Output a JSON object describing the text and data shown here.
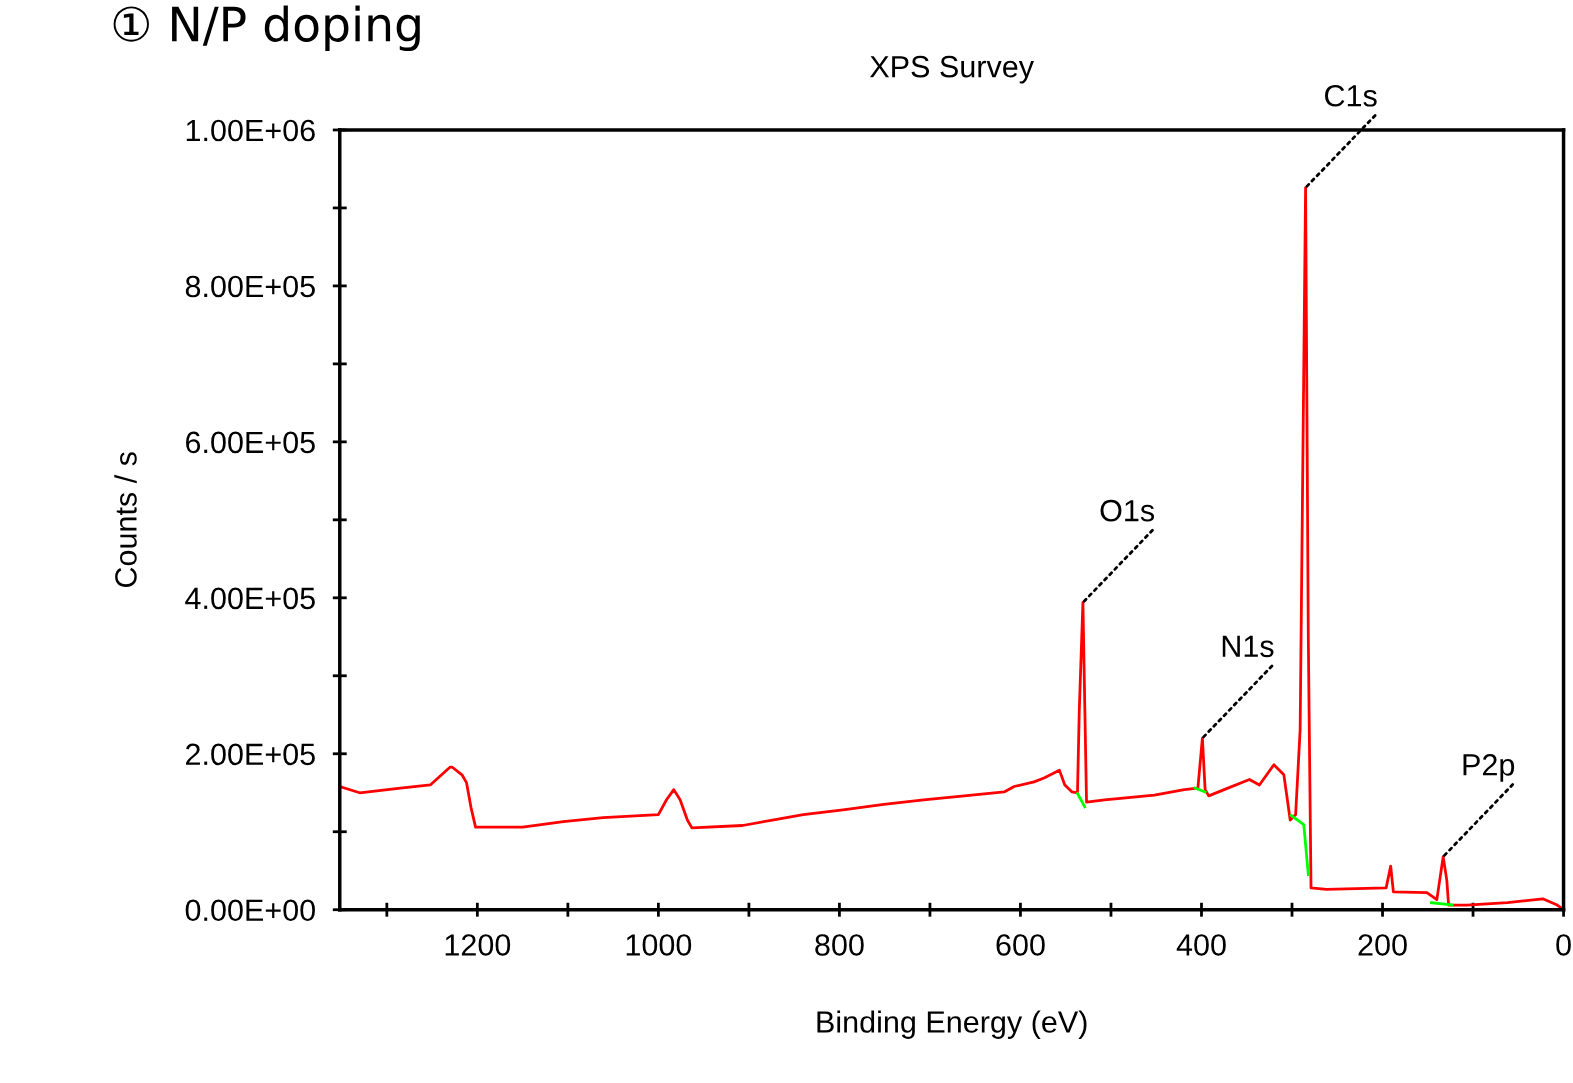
{
  "chart_data": {
    "type": "line",
    "title": "XPS Survey",
    "xlabel": "Binding Energy (eV)",
    "ylabel": "Counts / s",
    "xlim": [
      1352,
      0
    ],
    "ylim": [
      0,
      1000000
    ],
    "xticks": [
      {
        "value": 1300,
        "label": null
      },
      1200,
      {
        "value": 1100,
        "label": null
      },
      1000,
      {
        "value": 900,
        "label": null
      },
      800,
      {
        "value": 700,
        "label": null
      },
      600,
      {
        "value": 500,
        "label": null
      },
      400,
      {
        "value": 300,
        "label": null
      },
      200,
      {
        "value": 100,
        "label": null
      },
      0
    ],
    "yticks": [
      {
        "value": 0,
        "label": "0.00E+00"
      },
      {
        "value": 100000,
        "label": null
      },
      {
        "value": 200000,
        "label": "2.00E+05"
      },
      {
        "value": 300000,
        "label": null
      },
      {
        "value": 400000,
        "label": "4.00E+05"
      },
      {
        "value": 500000,
        "label": null
      },
      {
        "value": 600000,
        "label": "6.00E+05"
      },
      {
        "value": 700000,
        "label": null
      },
      {
        "value": 800000,
        "label": "8.00E+05"
      },
      {
        "value": 900000,
        "label": null
      },
      {
        "value": 1000000,
        "label": "1.00E+06"
      }
    ],
    "grid": false,
    "marker": "none",
    "line_style": "solid",
    "series": [
      {
        "color": "#ff0000",
        "x": [
          1352,
          1330,
          1285,
          1252,
          1230,
          1228,
          1217,
          1212,
          1207,
          1202,
          1150,
          1105,
          1061,
          1000,
          991,
          983,
          976,
          968,
          963,
          907,
          874,
          840,
          796,
          751,
          707,
          662,
          618,
          607,
          585,
          574,
          557,
          551,
          543,
          537,
          535,
          531,
          527,
          507,
          452,
          419,
          404,
          399,
          396,
          392,
          375,
          347,
          336,
          320,
          309,
          302,
          296,
          291,
          285,
          282,
          279,
          262,
          196,
          191,
          188,
          151,
          140,
          133,
          129,
          127,
          107,
          62,
          23,
          7,
          0
        ],
        "values": [
          158000,
          150000,
          156000,
          160000,
          183000,
          183000,
          173000,
          163000,
          131000,
          106000,
          106000,
          113000,
          118000,
          122000,
          141000,
          154000,
          141000,
          115000,
          105000,
          108000,
          115000,
          122000,
          128000,
          135000,
          141000,
          146000,
          151000,
          158000,
          164000,
          169000,
          179000,
          160000,
          151000,
          150000,
          256000,
          394000,
          138000,
          141000,
          147000,
          154000,
          156000,
          220000,
          154000,
          146000,
          154000,
          167000,
          160000,
          186000,
          173000,
          115000,
          122000,
          231000,
          926000,
          349000,
          28000,
          26000,
          28000,
          56000,
          23000,
          22000,
          13000,
          68000,
          38000,
          6000,
          6000,
          9000,
          14000,
          6000,
          0
        ]
      },
      {
        "color": "#00ff00",
        "x": [
          537,
          529,
          null,
          407,
          396,
          null,
          301,
          287,
          282,
          null,
          146,
          123
        ],
        "values": [
          149000,
          132000,
          null,
          156000,
          151000,
          null,
          121000,
          109000,
          45000,
          null,
          9000,
          6000
        ]
      }
    ],
    "annotations": [
      "① N/P doping",
      {
        "text": "O1s",
        "x": 531,
        "y": 394000
      },
      {
        "text": "N1s",
        "x": 399,
        "y": 220000
      },
      {
        "text": "C1s",
        "x": 285,
        "y": 926000
      },
      {
        "text": "P2p",
        "x": 133,
        "y": 68000
      }
    ]
  }
}
